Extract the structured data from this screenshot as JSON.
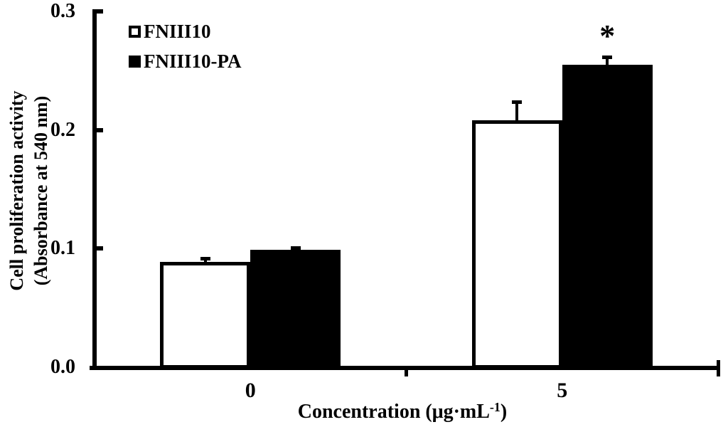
{
  "chart_data": {
    "type": "bar",
    "title": "",
    "categories": [
      "0",
      "5"
    ],
    "series": [
      {
        "name": "FNIII10",
        "fill": "#ffffff",
        "outline": "#000000",
        "values": [
          0.089,
          0.208
        ],
        "errors": [
          0.004,
          0.017
        ]
      },
      {
        "name": "FNIII10-PA",
        "fill": "#000000",
        "outline": "#000000",
        "values": [
          0.099,
          0.255
        ],
        "errors": [
          0.003,
          0.008
        ]
      }
    ],
    "xlabel": {
      "main": "Concentration (μg·mL",
      "superscript": "-1",
      "close": ")"
    },
    "ylabel_line1": "Cell proliferation activity",
    "ylabel_line2": "(Absorbance at 540 nm)",
    "ylim": [
      0,
      0.3
    ],
    "yticks": [
      {
        "value": 0.0,
        "label": "0.0"
      },
      {
        "value": 0.1,
        "label": "0.1"
      },
      {
        "value": 0.2,
        "label": "0.2"
      },
      {
        "value": 0.3,
        "label": "0.3"
      }
    ],
    "grid": false,
    "error_bars": "upper",
    "legend_position": "top-left-inside",
    "annotations": [
      {
        "text": "*",
        "series": "FNIII10-PA",
        "category": "5"
      }
    ]
  },
  "legend": {
    "items": [
      {
        "label": "FNIII10",
        "fill": "#ffffff"
      },
      {
        "label": "FNIII10-PA",
        "fill": "#000000"
      }
    ]
  },
  "colors": {
    "axis": "#000000",
    "text": "#000000",
    "background": "#ffffff"
  }
}
